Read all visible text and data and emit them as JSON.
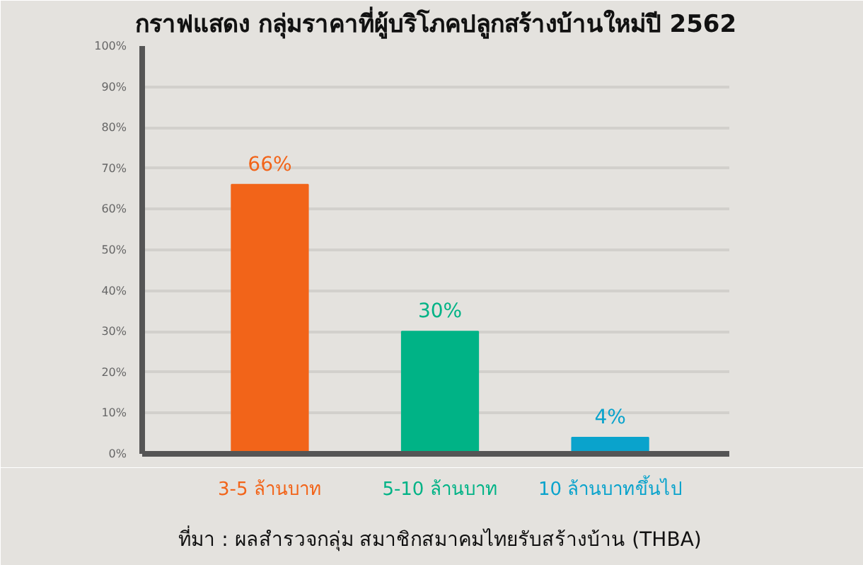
{
  "chart_data": {
    "type": "bar",
    "title": "กราฟแสดง กลุ่มราคาที่ผู้บริโภคปลูกสร้างบ้านใหม่ปี 2562",
    "categories": [
      "3-5 ล้านบาท",
      "5-10 ล้านบาท",
      "10 ล้านบาทขึ้นไป"
    ],
    "values": [
      66,
      30,
      4
    ],
    "colors": [
      "#f26419",
      "#00b386",
      "#0aa3cc"
    ],
    "value_labels": [
      "66%",
      "30%",
      "4%"
    ],
    "ylim": [
      0,
      100
    ],
    "yticks": [
      {
        "value": 0,
        "label": "0%"
      },
      {
        "value": 10,
        "label": "10%"
      },
      {
        "value": 20,
        "label": "20%"
      },
      {
        "value": 30,
        "label": "30%"
      },
      {
        "value": 40,
        "label": "40%"
      },
      {
        "value": 50,
        "label": "50%"
      },
      {
        "value": 60,
        "label": "60%"
      },
      {
        "value": 70,
        "label": "70%"
      },
      {
        "value": 80,
        "label": "80%"
      },
      {
        "value": 90,
        "label": "90%"
      },
      {
        "value": 100,
        "label": "100%"
      }
    ],
    "grid": "y",
    "annotations": [
      "ที่มา : ผลสำรวจกลุ่ม สมาชิกสมาคมไทยรับสร้างบ้าน (THBA)"
    ]
  }
}
